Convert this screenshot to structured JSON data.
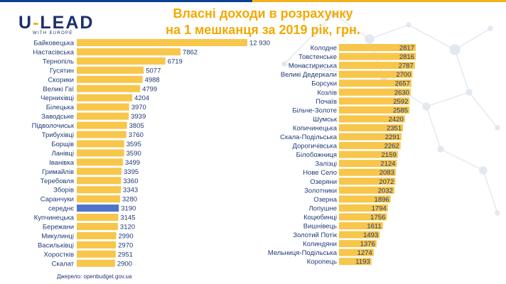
{
  "logo": {
    "left": "U",
    "dash": "-",
    "right": "LEAD",
    "tagline": "WITH EUROPE"
  },
  "title_line1": "Власні доходи в розрахунку",
  "title_line2": "на 1 мешканця за 2019 рік, грн.",
  "source": "Джерело:  openbudget.gov.ua",
  "colors": {
    "bar": "#f7c64a",
    "highlight": "#4f75c8",
    "text": "#1f3a77",
    "title": "#f2a900",
    "brand": "#1b2f6b",
    "bands": [
      "#0b3f91",
      "#f2b01e"
    ]
  },
  "chart_data": [
    {
      "type": "bar",
      "orientation": "horizontal",
      "title": "Власні доходи в розрахунку на 1 мешканця за 2019 рік, грн.",
      "categories": [
        "Байковецька",
        "Настасівська",
        "Тернопіль",
        "Гусятин",
        "Скорики",
        "Великі Гаї",
        "Чернихівці",
        "Білецька",
        "Заводське",
        "Підволочиськ",
        "Трибухівці",
        "Борщів",
        "Ланівці",
        "Іванівка",
        "Гримайлів",
        "Теребовля",
        "Зборів",
        "Саранчуки",
        "середнє",
        "Купчинецька",
        "Бережани",
        "Микулинці",
        "Васильківці",
        "Хоростків",
        "Скалат"
      ],
      "values": [
        12930,
        7862,
        6719,
        5077,
        4988,
        4799,
        4204,
        3970,
        3939,
        3805,
        3760,
        3595,
        3590,
        3499,
        3395,
        3360,
        3343,
        3280,
        3190,
        3145,
        3120,
        2990,
        2970,
        2951,
        2900
      ],
      "value_labels": [
        "12 930",
        "7862",
        "6719",
        "5077",
        "4988",
        "4799",
        "4204",
        "3970",
        "3939",
        "3805",
        "3760",
        "3595",
        "3590",
        "3499",
        "3395",
        "3360",
        "3343",
        "3280",
        "3190",
        "3145",
        "3120",
        "2990",
        "2970",
        "2951",
        "2900"
      ],
      "highlight": "середнє",
      "xlim": [
        0,
        12930
      ]
    },
    {
      "type": "bar",
      "orientation": "horizontal",
      "categories": [
        "Колодне",
        "Товстенське",
        "Монастириська",
        "Великі Дедеркали",
        "Борсуки",
        "Козлів",
        "Почаїв",
        "Більче-Золоте",
        "Шумськ",
        "Копичинецька",
        "Скала-Подільська",
        "Дорогичівська",
        "Білобожниця",
        "Залізці",
        "Нове Село",
        "Озеряни",
        "Золотники",
        "Озерна",
        "Лопушне",
        "Коцюбинці",
        "Вишнівець",
        "Золотий Потік",
        "Колиндяни",
        "Мельниця-Подільська",
        "Коропець"
      ],
      "values": [
        2817,
        2816,
        2787,
        2700,
        2657,
        2630,
        2592,
        2585,
        2420,
        2351,
        2291,
        2262,
        2159,
        2124,
        2083,
        2072,
        2032,
        1896,
        1794,
        1756,
        1611,
        1493,
        1376,
        1274,
        1193
      ],
      "xlim": [
        0,
        2817
      ]
    }
  ]
}
